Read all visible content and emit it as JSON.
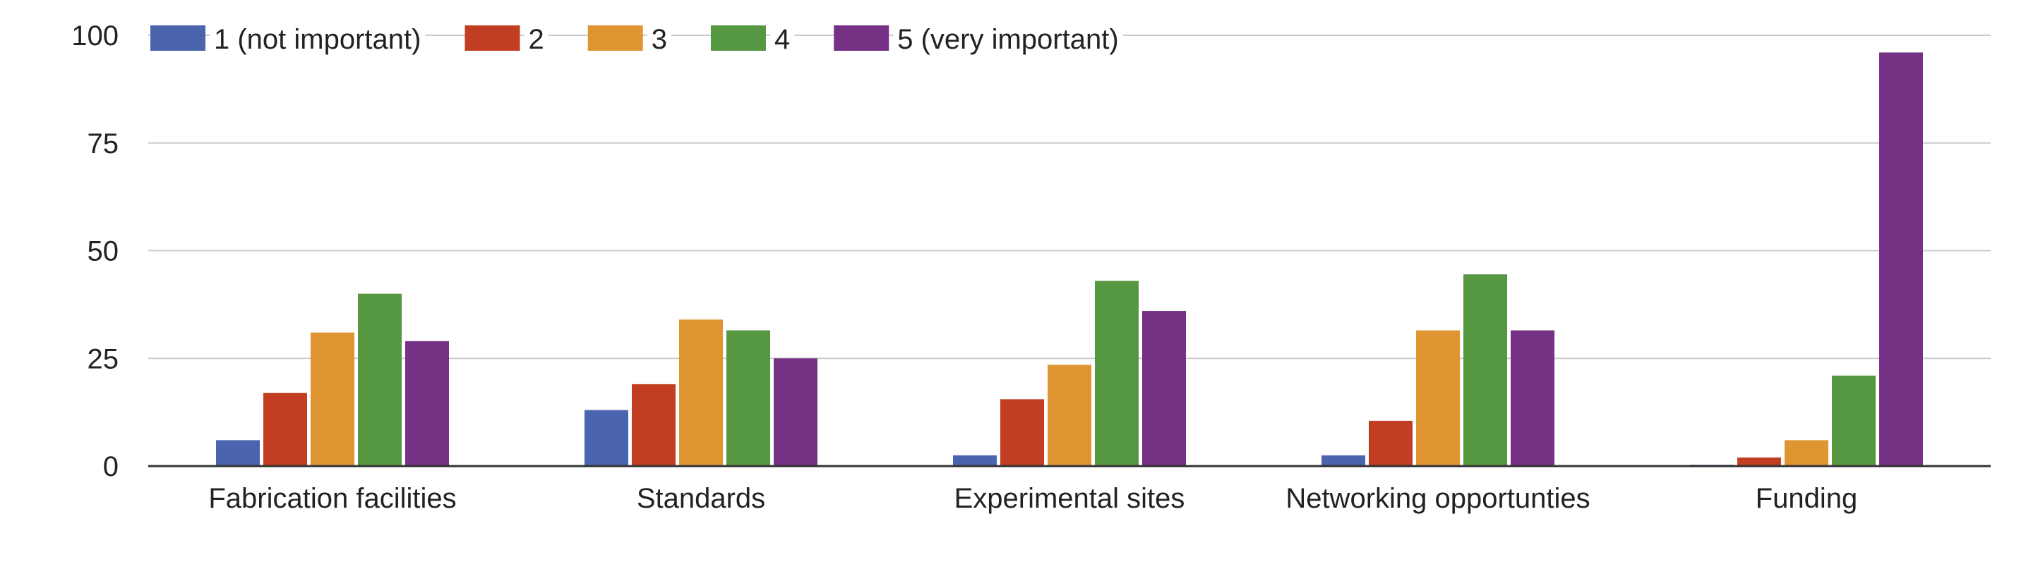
{
  "chart_data": {
    "type": "bar",
    "title": "",
    "xlabel": "",
    "ylabel": "",
    "ylim": [
      0,
      100
    ],
    "yticks": [
      0,
      25,
      50,
      75,
      100
    ],
    "grid": true,
    "legend_position": "top-left",
    "categories": [
      "Fabrication facilities",
      "Standards",
      "Experimental sites",
      "Networking opportunties",
      "Funding"
    ],
    "series": [
      {
        "name": "1 (not important)",
        "color": "#4a64ad",
        "values": [
          6,
          13,
          2.5,
          2.5,
          0.3
        ]
      },
      {
        "name": "2",
        "color": "#c23e22",
        "values": [
          17,
          19,
          15.5,
          10.5,
          2
        ]
      },
      {
        "name": "3",
        "color": "#de9532",
        "values": [
          31,
          34,
          23.5,
          31.5,
          6
        ]
      },
      {
        "name": "4",
        "color": "#569742",
        "values": [
          40,
          31.5,
          43,
          44.5,
          21
        ]
      },
      {
        "name": "5 (very important)",
        "color": "#753285",
        "values": [
          29,
          25,
          36,
          31.5,
          96
        ]
      }
    ]
  }
}
